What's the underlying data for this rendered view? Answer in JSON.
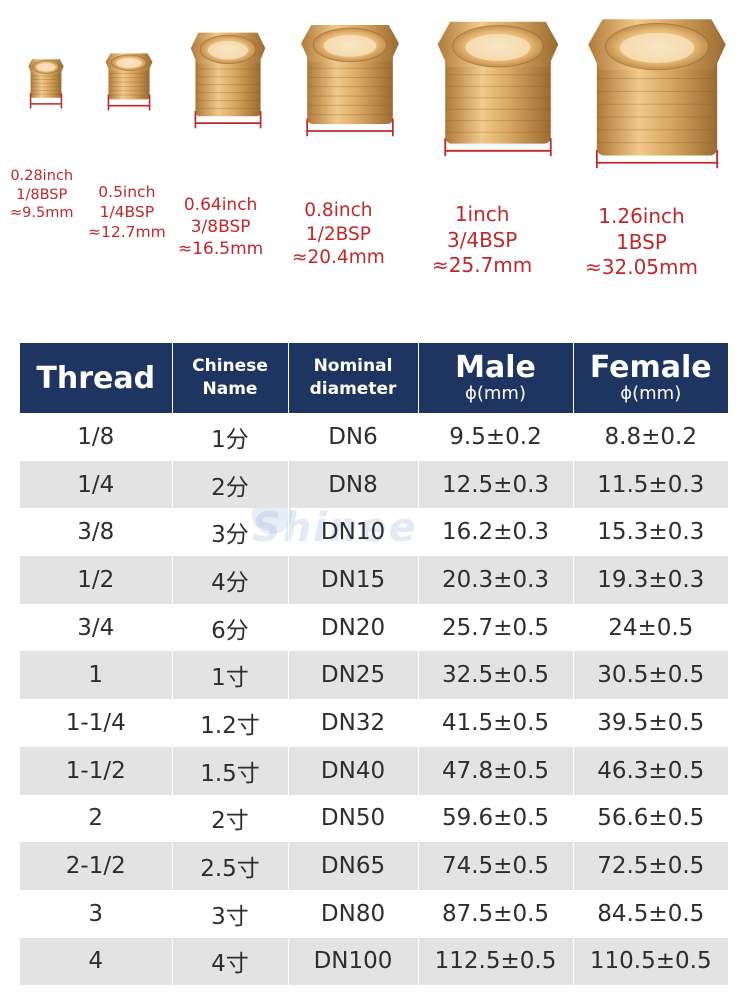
{
  "fittings": [
    {
      "inch": "0.28inch",
      "bsp": "1/8BSP",
      "mm": "≈9.5mm"
    },
    {
      "inch": "0.5inch",
      "bsp": "1/4BSP",
      "mm": "≈12.7mm"
    },
    {
      "inch": "0.64inch",
      "bsp": "3/8BSP",
      "mm": "≈16.5mm"
    },
    {
      "inch": "0.8inch",
      "bsp": "1/2BSP",
      "mm": "≈20.4mm"
    },
    {
      "inch": "1inch",
      "bsp": "3/4BSP",
      "mm": "≈25.7mm"
    },
    {
      "inch": "1.26inch",
      "bsp": "1BSP",
      "mm": "≈32.05mm"
    }
  ],
  "watermark": "Shinee",
  "table": {
    "headers": {
      "thread": "Thread",
      "chinese_line1": "Chinese",
      "chinese_line2": "Name",
      "nominal_line1": "Nominal",
      "nominal_line2": "diameter",
      "male": "Male",
      "male_unit": "ϕ(mm)",
      "female": "Female",
      "female_unit": "ϕ(mm)"
    },
    "rows": [
      {
        "thread": "1/8",
        "chinese": "1分",
        "nominal": "DN6",
        "male": "9.5±0.2",
        "female": "8.8±0.2"
      },
      {
        "thread": "1/4",
        "chinese": "2分",
        "nominal": "DN8",
        "male": "12.5±0.3",
        "female": "11.5±0.3"
      },
      {
        "thread": "3/8",
        "chinese": "3分",
        "nominal": "DN10",
        "male": "16.2±0.3",
        "female": "15.3±0.3"
      },
      {
        "thread": "1/2",
        "chinese": "4分",
        "nominal": "DN15",
        "male": "20.3±0.3",
        "female": "19.3±0.3"
      },
      {
        "thread": "3/4",
        "chinese": "6分",
        "nominal": "DN20",
        "male": "25.7±0.5",
        "female": "24±0.5"
      },
      {
        "thread": "1",
        "chinese": "1寸",
        "nominal": "DN25",
        "male": "32.5±0.5",
        "female": "30.5±0.5"
      },
      {
        "thread": "1-1/4",
        "chinese": "1.2寸",
        "nominal": "DN32",
        "male": "41.5±0.5",
        "female": "39.5±0.5"
      },
      {
        "thread": "1-1/2",
        "chinese": "1.5寸",
        "nominal": "DN40",
        "male": "47.8±0.5",
        "female": "46.3±0.5"
      },
      {
        "thread": "2",
        "chinese": "2寸",
        "nominal": "DN50",
        "male": "59.6±0.5",
        "female": "56.6±0.5"
      },
      {
        "thread": "2-1/2",
        "chinese": "2.5寸",
        "nominal": "DN65",
        "male": "74.5±0.5",
        "female": "72.5±0.5"
      },
      {
        "thread": "3",
        "chinese": "3寸",
        "nominal": "DN80",
        "male": "87.5±0.5",
        "female": "84.5±0.5"
      },
      {
        "thread": "4",
        "chinese": "4寸",
        "nominal": "DN100",
        "male": "112.5±0.5",
        "female": "110.5±0.5"
      }
    ]
  },
  "colors": {
    "brass": "#c9954f",
    "label_red": "#c0282b",
    "header_navy": "#1e3561",
    "row_alt": "#e3e3e3"
  }
}
